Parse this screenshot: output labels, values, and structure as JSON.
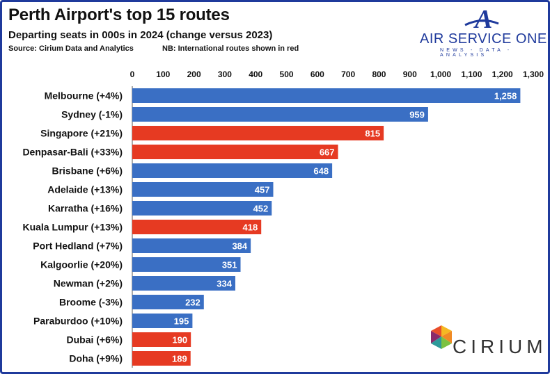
{
  "header": {
    "title": "Perth Airport's top 15 routes",
    "subtitle": "Departing seats in 000s in 2024 (change versus 2023)",
    "source": "Source: Cirium Data and Analytics",
    "note": "NB: International routes shown in red"
  },
  "branding": {
    "aso_name": "AIR SERVICE ONE",
    "aso_tagline": "NEWS - DATA - ANALYSIS",
    "cirium_name": "CIRIUM",
    "aso_logo_letter": "A"
  },
  "colors": {
    "domestic": "#3a6fc4",
    "international": "#e63a22",
    "brand_blue": "#1f3a9c"
  },
  "chart_data": {
    "type": "bar",
    "orientation": "horizontal",
    "categories": [
      "Melbourne (+4%)",
      "Sydney (-1%)",
      "Singapore (+21%)",
      "Denpasar-Bali (+33%)",
      "Brisbane (+6%)",
      "Adelaide (+13%)",
      "Karratha (+16%)",
      "Kuala Lumpur (+13%)",
      "Port Hedland (+7%)",
      "Kalgoorlie (+20%)",
      "Newman (+2%)",
      "Broome (-3%)",
      "Paraburdoo (+10%)",
      "Dubai (+6%)",
      "Doha (+9%)"
    ],
    "values": [
      1258,
      959,
      815,
      667,
      648,
      457,
      452,
      418,
      384,
      351,
      334,
      232,
      195,
      190,
      189
    ],
    "value_labels": [
      "1,258",
      "959",
      "815",
      "667",
      "648",
      "457",
      "452",
      "418",
      "384",
      "351",
      "334",
      "232",
      "195",
      "190",
      "189"
    ],
    "international": [
      false,
      false,
      true,
      true,
      false,
      false,
      false,
      true,
      false,
      false,
      false,
      false,
      false,
      true,
      true
    ],
    "xlim": [
      0,
      1300
    ],
    "xticks": [
      0,
      100,
      200,
      300,
      400,
      500,
      600,
      700,
      800,
      900,
      1000,
      1100,
      1200,
      1300
    ],
    "xtick_labels": [
      "0",
      "100",
      "200",
      "300",
      "400",
      "500",
      "600",
      "700",
      "800",
      "900",
      "1,000",
      "1,100",
      "1,200",
      "1,300"
    ],
    "axis_position": "top",
    "grid": false,
    "legend": false
  }
}
